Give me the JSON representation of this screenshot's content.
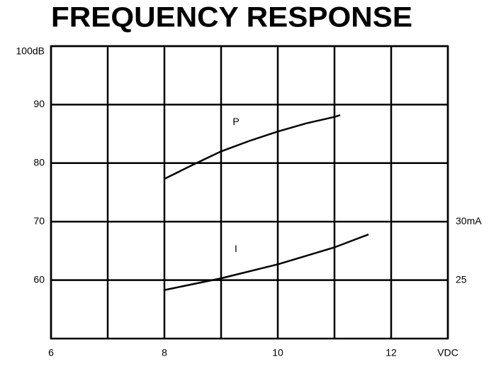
{
  "chart_data": {
    "type": "line",
    "title": "FREQUENCY RESPONSE",
    "xlim": [
      6,
      13
    ],
    "xticks": [
      6,
      8,
      10,
      12,
      {
        "value": 13,
        "label": "VDC"
      }
    ],
    "xminor": [
      7,
      9,
      11
    ],
    "ylim": [
      50,
      100
    ],
    "yticks": [
      60,
      70,
      80,
      90,
      {
        "value": 100,
        "label": "100dB"
      }
    ],
    "y2lim": [
      20,
      45
    ],
    "y2ticks": [
      25,
      {
        "value": 30,
        "label": "30mA"
      }
    ],
    "grid": true,
    "series": [
      {
        "name": "P",
        "color": "#000000",
        "x": [
          8,
          8.5,
          9,
          9.5,
          10,
          10.5,
          11,
          11.1
        ],
        "values": [
          77.3,
          79.7,
          82.0,
          83.8,
          85.4,
          86.8,
          87.9,
          88.2
        ]
      },
      {
        "name": "I",
        "color": "#000000",
        "axis": "y2",
        "x": [
          8,
          9,
          10,
          11,
          11.6
        ],
        "values": [
          24.15,
          25.15,
          26.35,
          27.8,
          28.9
        ]
      }
    ]
  }
}
